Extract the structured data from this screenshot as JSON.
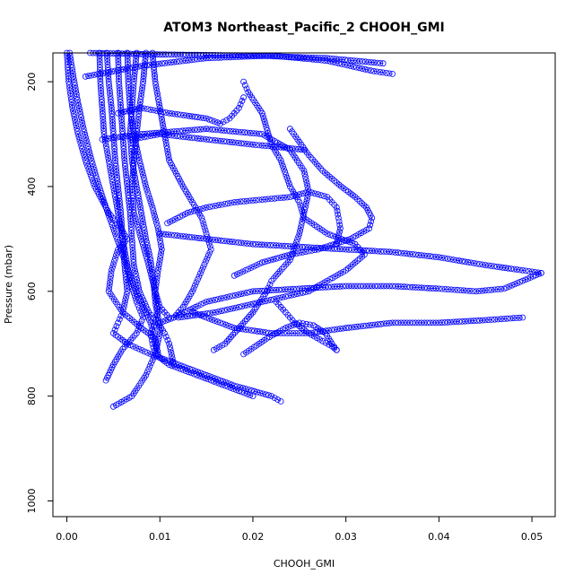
{
  "chart_data": {
    "type": "scatter",
    "title": "ATOM3 Northeast_Pacific_2 CHOOH_GMI",
    "xlabel": "CHOOH_GMI",
    "ylabel": "Pressure (mbar)",
    "xlim": [
      -0.0015,
      0.0525
    ],
    "ylim": [
      1030,
      145
    ],
    "y_reversed": true,
    "x_ticks": [
      0.0,
      0.01,
      0.02,
      0.03,
      0.04,
      0.05
    ],
    "x_tick_labels": [
      "0.00",
      "0.01",
      "0.02",
      "0.03",
      "0.04",
      "0.05"
    ],
    "y_ticks": [
      200,
      400,
      600,
      800,
      1000
    ],
    "y_tick_labels": [
      "200",
      "400",
      "600",
      "800",
      "1000"
    ],
    "grid": false,
    "marker": "open-circle",
    "line_style": "dashed",
    "color": "#0000ff",
    "series": [
      {
        "points": [
          [
            0.0003,
            145
          ],
          [
            0.0007,
            190
          ],
          [
            0.0012,
            240
          ],
          [
            0.0018,
            290
          ],
          [
            0.0025,
            340
          ],
          [
            0.0033,
            390
          ],
          [
            0.0042,
            440
          ],
          [
            0.0052,
            490
          ],
          [
            0.0062,
            540
          ],
          [
            0.0072,
            590
          ],
          [
            0.0082,
            630
          ],
          [
            0.009,
            660
          ],
          [
            0.0095,
            690
          ],
          [
            0.0098,
            720
          ]
        ]
      },
      {
        "points": [
          [
            0.0055,
            145
          ],
          [
            0.0056,
            200
          ],
          [
            0.0058,
            250
          ],
          [
            0.006,
            300
          ],
          [
            0.0062,
            350
          ],
          [
            0.0065,
            400
          ],
          [
            0.0068,
            450
          ],
          [
            0.007,
            500
          ],
          [
            0.0072,
            550
          ],
          [
            0.0078,
            600
          ],
          [
            0.0088,
            640
          ],
          [
            0.0098,
            660
          ],
          [
            0.0105,
            680
          ],
          [
            0.011,
            700
          ],
          [
            0.0115,
            740
          ]
        ]
      },
      {
        "points": [
          [
            0.0075,
            145
          ],
          [
            0.0072,
            200
          ],
          [
            0.007,
            250
          ],
          [
            0.0068,
            300
          ],
          [
            0.007,
            350
          ],
          [
            0.0075,
            400
          ],
          [
            0.008,
            450
          ],
          [
            0.0085,
            500
          ],
          [
            0.009,
            540
          ],
          [
            0.0093,
            580
          ],
          [
            0.0095,
            620
          ],
          [
            0.0098,
            650
          ],
          [
            0.01,
            680
          ],
          [
            0.0095,
            720
          ],
          [
            0.0085,
            760
          ],
          [
            0.007,
            800
          ],
          [
            0.005,
            820
          ]
        ]
      },
      {
        "points": [
          [
            0.0,
            145
          ],
          [
            0.0002,
            200
          ],
          [
            0.0006,
            250
          ],
          [
            0.0012,
            300
          ],
          [
            0.002,
            350
          ],
          [
            0.003,
            400
          ],
          [
            0.0045,
            450
          ],
          [
            0.0058,
            480
          ],
          [
            0.0065,
            500
          ],
          [
            0.0055,
            520
          ],
          [
            0.0048,
            560
          ],
          [
            0.0045,
            600
          ],
          [
            0.006,
            640
          ],
          [
            0.008,
            670
          ],
          [
            0.0095,
            690
          ],
          [
            0.0098,
            720
          ]
        ]
      },
      {
        "points": [
          [
            0.0035,
            145
          ],
          [
            0.0036,
            200
          ],
          [
            0.0038,
            250
          ],
          [
            0.004,
            300
          ],
          [
            0.0044,
            340
          ],
          [
            0.0048,
            380
          ],
          [
            0.0052,
            420
          ],
          [
            0.0056,
            460
          ],
          [
            0.006,
            500
          ],
          [
            0.0064,
            540
          ],
          [
            0.0068,
            580
          ],
          [
            0.0075,
            620
          ],
          [
            0.0082,
            650
          ],
          [
            0.0075,
            680
          ],
          [
            0.006,
            710
          ],
          [
            0.005,
            740
          ],
          [
            0.0042,
            770
          ]
        ]
      },
      {
        "points": [
          [
            0.0043,
            145
          ],
          [
            0.0045,
            200
          ],
          [
            0.0048,
            250
          ],
          [
            0.005,
            300
          ],
          [
            0.0052,
            350
          ],
          [
            0.0055,
            400
          ],
          [
            0.0058,
            450
          ],
          [
            0.006,
            500
          ],
          [
            0.0062,
            550
          ],
          [
            0.0065,
            600
          ],
          [
            0.006,
            640
          ],
          [
            0.0055,
            660
          ],
          [
            0.005,
            680
          ],
          [
            0.0065,
            700
          ],
          [
            0.009,
            720
          ],
          [
            0.012,
            740
          ],
          [
            0.015,
            760
          ],
          [
            0.018,
            780
          ],
          [
            0.022,
            800
          ],
          [
            0.023,
            810
          ]
        ]
      },
      {
        "points": [
          [
            0.0085,
            145
          ],
          [
            0.0082,
            200
          ],
          [
            0.0078,
            250
          ],
          [
            0.0075,
            300
          ],
          [
            0.0072,
            350
          ],
          [
            0.007,
            400
          ],
          [
            0.0072,
            450
          ],
          [
            0.008,
            500
          ],
          [
            0.0088,
            550
          ],
          [
            0.0095,
            600
          ],
          [
            0.0098,
            640
          ],
          [
            0.0095,
            660
          ],
          [
            0.009,
            680
          ],
          [
            0.0092,
            700
          ],
          [
            0.0095,
            720
          ],
          [
            0.011,
            740
          ],
          [
            0.014,
            760
          ],
          [
            0.017,
            780
          ],
          [
            0.02,
            800
          ]
        ]
      },
      {
        "points": [
          [
            0.0065,
            145
          ],
          [
            0.0066,
            200
          ],
          [
            0.0068,
            250
          ],
          [
            0.0072,
            300
          ],
          [
            0.0078,
            350
          ],
          [
            0.0085,
            400
          ],
          [
            0.0092,
            440
          ],
          [
            0.0098,
            480
          ],
          [
            0.0102,
            520
          ],
          [
            0.0098,
            560
          ],
          [
            0.0095,
            600
          ],
          [
            0.01,
            630
          ],
          [
            0.011,
            650
          ]
        ]
      },
      {
        "points": [
          [
            0.0092,
            145
          ],
          [
            0.0095,
            200
          ],
          [
            0.01,
            250
          ],
          [
            0.0105,
            300
          ],
          [
            0.011,
            350
          ],
          [
            0.0125,
            400
          ],
          [
            0.0135,
            430
          ],
          [
            0.0145,
            460
          ],
          [
            0.015,
            490
          ],
          [
            0.0155,
            520
          ],
          [
            0.0145,
            560
          ],
          [
            0.0135,
            600
          ],
          [
            0.0125,
            630
          ],
          [
            0.0115,
            650
          ],
          [
            0.01,
            660
          ]
        ]
      },
      {
        "points": [
          [
            0.007,
            310
          ],
          [
            0.01,
            300
          ],
          [
            0.015,
            310
          ],
          [
            0.02,
            320
          ],
          [
            0.023,
            325
          ],
          [
            0.0255,
            330
          ]
        ]
      },
      {
        "points": [
          [
            0.0038,
            310
          ],
          [
            0.008,
            300
          ],
          [
            0.015,
            290
          ],
          [
            0.021,
            300
          ],
          [
            0.024,
            330
          ],
          [
            0.0255,
            370
          ],
          [
            0.026,
            410
          ],
          [
            0.0255,
            450
          ],
          [
            0.025,
            490
          ],
          [
            0.024,
            540
          ],
          [
            0.022,
            580
          ],
          [
            0.0215,
            600
          ],
          [
            0.02,
            640
          ],
          [
            0.0185,
            670
          ],
          [
            0.017,
            700
          ],
          [
            0.0158,
            712
          ]
        ]
      },
      {
        "points": [
          [
            0.002,
            190
          ],
          [
            0.008,
            170
          ],
          [
            0.015,
            155
          ],
          [
            0.022,
            150
          ],
          [
            0.028,
            160
          ],
          [
            0.033,
            180
          ],
          [
            0.035,
            185
          ]
        ]
      },
      {
        "points": [
          [
            0.0025,
            145
          ],
          [
            0.01,
            148
          ],
          [
            0.02,
            150
          ],
          [
            0.028,
            155
          ],
          [
            0.034,
            165
          ]
        ]
      },
      {
        "points": [
          [
            0.0055,
            260
          ],
          [
            0.008,
            250
          ],
          [
            0.011,
            260
          ],
          [
            0.015,
            270
          ],
          [
            0.0165,
            280
          ],
          [
            0.0175,
            270
          ],
          [
            0.0185,
            250
          ],
          [
            0.019,
            230
          ]
        ]
      },
      {
        "points": [
          [
            0.01,
            490
          ],
          [
            0.015,
            500
          ],
          [
            0.02,
            510
          ],
          [
            0.025,
            515
          ],
          [
            0.03,
            520
          ],
          [
            0.035,
            525
          ],
          [
            0.04,
            535
          ],
          [
            0.045,
            550
          ],
          [
            0.049,
            560
          ],
          [
            0.051,
            565
          ]
        ]
      },
      {
        "points": [
          [
            0.0115,
            650
          ],
          [
            0.015,
            620
          ],
          [
            0.02,
            600
          ],
          [
            0.025,
            595
          ],
          [
            0.03,
            590
          ],
          [
            0.035,
            590
          ],
          [
            0.04,
            595
          ],
          [
            0.044,
            600
          ],
          [
            0.047,
            595
          ],
          [
            0.049,
            580
          ],
          [
            0.051,
            565
          ]
        ]
      },
      {
        "points": [
          [
            0.012,
            650
          ],
          [
            0.016,
            640
          ],
          [
            0.021,
            620
          ],
          [
            0.026,
            600
          ],
          [
            0.03,
            560
          ],
          [
            0.032,
            530
          ],
          [
            0.031,
            510
          ],
          [
            0.028,
            490
          ],
          [
            0.0255,
            460
          ],
          [
            0.025,
            430
          ],
          [
            0.024,
            400
          ],
          [
            0.023,
            350
          ],
          [
            0.022,
            320
          ],
          [
            0.021,
            260
          ],
          [
            0.0195,
            220
          ],
          [
            0.019,
            200
          ]
        ]
      },
      {
        "points": [
          [
            0.0135,
            640
          ],
          [
            0.018,
            670
          ],
          [
            0.022,
            680
          ],
          [
            0.026,
            680
          ],
          [
            0.03,
            670
          ],
          [
            0.035,
            660
          ],
          [
            0.04,
            660
          ],
          [
            0.045,
            655
          ],
          [
            0.049,
            650
          ]
        ]
      },
      {
        "points": [
          [
            0.0108,
            470
          ],
          [
            0.013,
            450
          ],
          [
            0.015,
            440
          ],
          [
            0.018,
            430
          ],
          [
            0.021,
            425
          ],
          [
            0.024,
            420
          ],
          [
            0.026,
            410
          ],
          [
            0.028,
            420
          ],
          [
            0.029,
            440
          ],
          [
            0.0292,
            460
          ],
          [
            0.0294,
            480
          ],
          [
            0.029,
            510
          ]
        ]
      },
      {
        "points": [
          [
            0.018,
            570
          ],
          [
            0.021,
            545
          ],
          [
            0.024,
            530
          ],
          [
            0.027,
            520
          ],
          [
            0.0305,
            500
          ],
          [
            0.0325,
            480
          ],
          [
            0.0328,
            460
          ],
          [
            0.0322,
            440
          ],
          [
            0.031,
            420
          ],
          [
            0.0295,
            400
          ],
          [
            0.0275,
            370
          ],
          [
            0.026,
            340
          ],
          [
            0.0248,
            310
          ],
          [
            0.024,
            290
          ]
        ]
      },
      {
        "points": [
          [
            0.019,
            720
          ],
          [
            0.0215,
            690
          ],
          [
            0.0235,
            670
          ],
          [
            0.025,
            660
          ],
          [
            0.0265,
            665
          ],
          [
            0.0278,
            680
          ],
          [
            0.0285,
            700
          ],
          [
            0.029,
            712
          ]
        ]
      },
      {
        "points": [
          [
            0.0225,
            620
          ],
          [
            0.0235,
            640
          ],
          [
            0.0245,
            660
          ],
          [
            0.026,
            680
          ],
          [
            0.0275,
            695
          ],
          [
            0.0285,
            705
          ],
          [
            0.029,
            712
          ]
        ]
      }
    ]
  }
}
